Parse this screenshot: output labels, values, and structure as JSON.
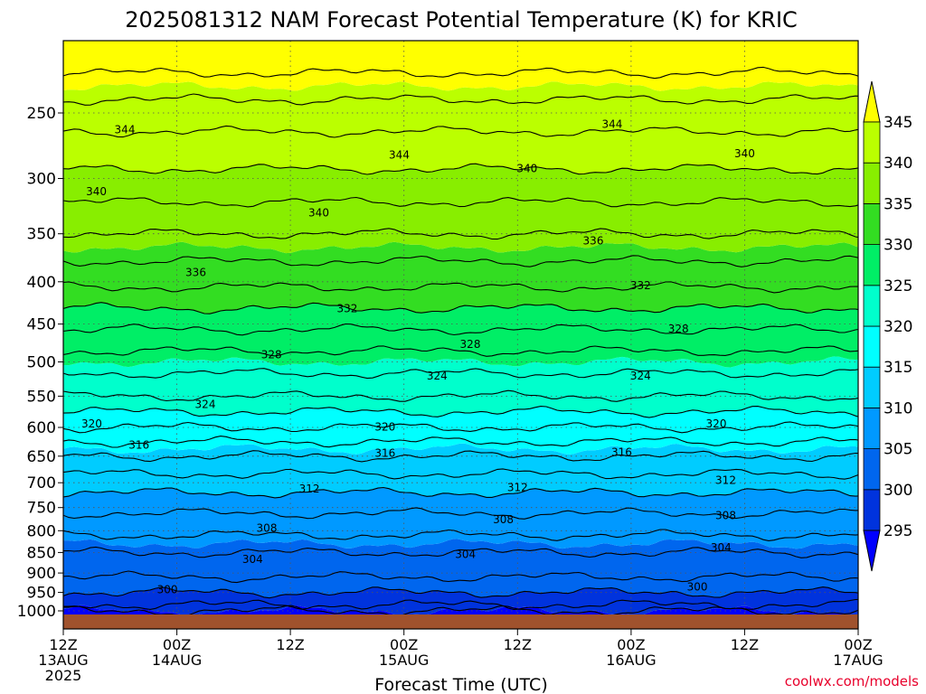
{
  "chart_data": {
    "type": "heatmap",
    "title": "2025081312 NAM Forecast Potential Temperature (K) for KRIC",
    "xlabel": "Forecast Time (UTC)",
    "ylabel": "",
    "credit": "coolwx.com/models",
    "x_ticks": [
      {
        "hour": 0,
        "lines": [
          "12Z",
          "13AUG",
          "2025"
        ]
      },
      {
        "hour": 12,
        "lines": [
          "00Z",
          "14AUG"
        ]
      },
      {
        "hour": 24,
        "lines": [
          "12Z"
        ]
      },
      {
        "hour": 36,
        "lines": [
          "00Z",
          "15AUG"
        ]
      },
      {
        "hour": 48,
        "lines": [
          "12Z"
        ]
      },
      {
        "hour": 60,
        "lines": [
          "00Z",
          "16AUG"
        ]
      },
      {
        "hour": 72,
        "lines": [
          "12Z"
        ]
      },
      {
        "hour": 84,
        "lines": [
          "00Z",
          "17AUG"
        ]
      }
    ],
    "xlim": [
      0,
      84
    ],
    "y_scale": "log",
    "ylim": [
      1000,
      200
    ],
    "y_ticks": [
      250,
      300,
      350,
      400,
      450,
      500,
      550,
      600,
      650,
      700,
      750,
      800,
      850,
      900,
      950,
      1000
    ],
    "grid": true,
    "colorbar": {
      "levels": [
        295,
        300,
        305,
        310,
        315,
        320,
        325,
        330,
        335,
        340,
        345
      ],
      "colors": [
        "#0000ff",
        "#0033dd",
        "#0066ee",
        "#0099ff",
        "#00ccff",
        "#00ffff",
        "#00ffcc",
        "#00ee66",
        "#33dd22",
        "#88ee00",
        "#bbff00",
        "#ffff00"
      ]
    },
    "contour_levels": [
      296,
      298,
      300,
      302,
      304,
      306,
      308,
      310,
      312,
      314,
      316,
      318,
      320,
      322,
      324,
      326,
      328,
      330,
      332,
      334,
      336,
      338,
      340,
      342,
      344,
      346
    ],
    "isentrope_profile": [
      {
        "pressure": 1000,
        "theta": 297
      },
      {
        "pressure": 950,
        "theta": 300
      },
      {
        "pressure": 900,
        "theta": 302.5
      },
      {
        "pressure": 850,
        "theta": 304
      },
      {
        "pressure": 800,
        "theta": 306.5
      },
      {
        "pressure": 750,
        "theta": 308.5
      },
      {
        "pressure": 700,
        "theta": 311
      },
      {
        "pressure": 650,
        "theta": 314
      },
      {
        "pressure": 600,
        "theta": 318
      },
      {
        "pressure": 550,
        "theta": 322
      },
      {
        "pressure": 500,
        "theta": 325
      },
      {
        "pressure": 450,
        "theta": 328.5
      },
      {
        "pressure": 400,
        "theta": 332.5
      },
      {
        "pressure": 350,
        "theta": 336
      },
      {
        "pressure": 300,
        "theta": 339.5
      },
      {
        "pressure": 250,
        "theta": 343
      },
      {
        "pressure": 200,
        "theta": 349
      }
    ],
    "contour_labels": [
      {
        "value": "344",
        "hour": 6.5,
        "pressure": 262
      },
      {
        "value": "344",
        "hour": 35.5,
        "pressure": 281
      },
      {
        "value": "344",
        "hour": 58,
        "pressure": 258
      },
      {
        "value": "340",
        "hour": 3.5,
        "pressure": 311
      },
      {
        "value": "340",
        "hour": 27,
        "pressure": 330
      },
      {
        "value": "340",
        "hour": 49,
        "pressure": 292
      },
      {
        "value": "340",
        "hour": 72,
        "pressure": 280
      },
      {
        "value": "336",
        "hour": 14,
        "pressure": 390
      },
      {
        "value": "336",
        "hour": 56,
        "pressure": 357
      },
      {
        "value": "332",
        "hour": 30,
        "pressure": 431
      },
      {
        "value": "332",
        "hour": 61,
        "pressure": 404
      },
      {
        "value": "328",
        "hour": 22,
        "pressure": 490
      },
      {
        "value": "328",
        "hour": 43,
        "pressure": 476
      },
      {
        "value": "328",
        "hour": 65,
        "pressure": 456
      },
      {
        "value": "324",
        "hour": 15,
        "pressure": 563
      },
      {
        "value": "324",
        "hour": 39.5,
        "pressure": 520
      },
      {
        "value": "324",
        "hour": 61,
        "pressure": 520
      },
      {
        "value": "320",
        "hour": 3,
        "pressure": 594
      },
      {
        "value": "320",
        "hour": 34,
        "pressure": 599
      },
      {
        "value": "320",
        "hour": 69,
        "pressure": 594
      },
      {
        "value": "316",
        "hour": 8,
        "pressure": 630
      },
      {
        "value": "316",
        "hour": 34,
        "pressure": 645
      },
      {
        "value": "316",
        "hour": 59,
        "pressure": 643
      },
      {
        "value": "312",
        "hour": 26,
        "pressure": 712
      },
      {
        "value": "312",
        "hour": 48,
        "pressure": 709
      },
      {
        "value": "312",
        "hour": 70,
        "pressure": 695
      },
      {
        "value": "308",
        "hour": 21.5,
        "pressure": 794
      },
      {
        "value": "308",
        "hour": 46.5,
        "pressure": 776
      },
      {
        "value": "308",
        "hour": 70,
        "pressure": 767
      },
      {
        "value": "304",
        "hour": 20,
        "pressure": 866
      },
      {
        "value": "304",
        "hour": 42.5,
        "pressure": 854
      },
      {
        "value": "304",
        "hour": 69.5,
        "pressure": 838
      },
      {
        "value": "300",
        "hour": 11,
        "pressure": 942
      },
      {
        "value": "300",
        "hour": 67,
        "pressure": 936
      }
    ]
  }
}
